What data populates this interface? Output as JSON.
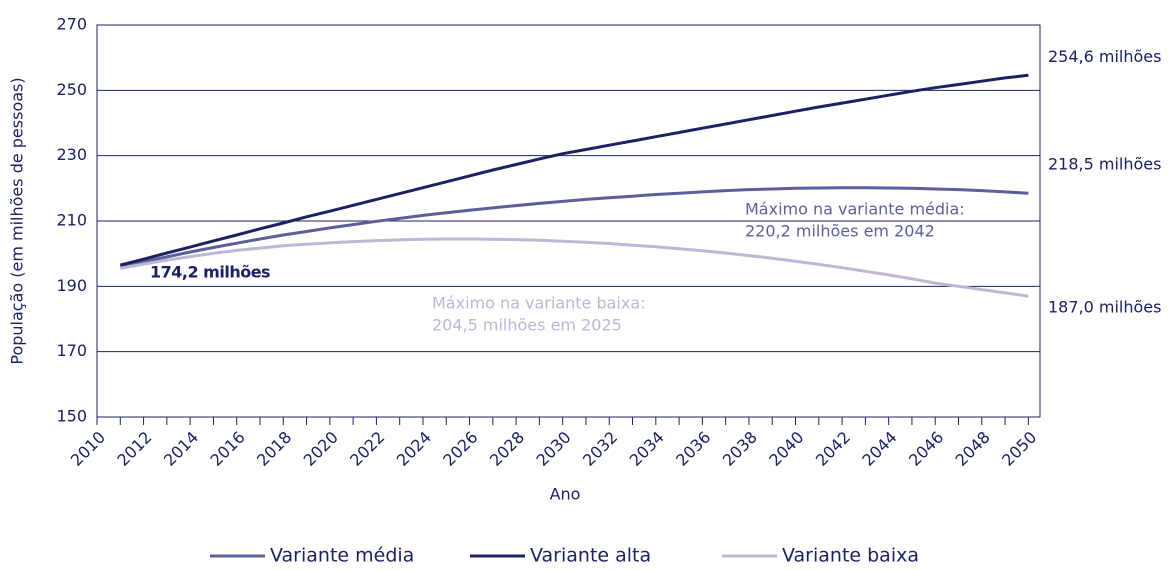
{
  "chart_data": {
    "type": "line",
    "xlabel": "Ano",
    "ylabel": "População (em milhões de pessoas)",
    "x": [
      2011,
      2012,
      2013,
      2014,
      2015,
      2016,
      2017,
      2018,
      2019,
      2020,
      2021,
      2022,
      2023,
      2024,
      2025,
      2026,
      2027,
      2028,
      2029,
      2030,
      2031,
      2032,
      2033,
      2034,
      2035,
      2036,
      2037,
      2038,
      2039,
      2040,
      2041,
      2042,
      2043,
      2044,
      2045,
      2046,
      2047,
      2048,
      2049,
      2050
    ],
    "series": [
      {
        "name": "Variante média",
        "color": "#5e5f9a",
        "values": [
          196.0,
          197.5,
          199.0,
          200.5,
          201.9,
          203.2,
          204.5,
          205.7,
          206.8,
          207.9,
          208.9,
          209.9,
          210.8,
          211.7,
          212.5,
          213.3,
          214.0,
          214.7,
          215.4,
          216.0,
          216.6,
          217.1,
          217.6,
          218.1,
          218.5,
          218.9,
          219.3,
          219.6,
          219.8,
          220.0,
          220.1,
          220.2,
          220.2,
          220.1,
          220.0,
          219.8,
          219.6,
          219.3,
          218.9,
          218.5
        ],
        "end_label": "218,5 milhões"
      },
      {
        "name": "Variante alta",
        "color": "#1b2262",
        "values": [
          196.5,
          198.3,
          200.2,
          202.0,
          203.9,
          205.7,
          207.6,
          209.4,
          211.3,
          213.0,
          214.8,
          216.6,
          218.4,
          220.2,
          222.0,
          223.8,
          225.6,
          227.3,
          229.0,
          230.6,
          231.9,
          233.2,
          234.5,
          235.8,
          237.1,
          238.4,
          239.7,
          241.0,
          242.3,
          243.6,
          244.9,
          246.1,
          247.3,
          248.5,
          249.7,
          250.8,
          251.8,
          252.8,
          253.8,
          254.6
        ],
        "end_label": "254,6 milhões"
      },
      {
        "name": "Variante baixa",
        "color": "#b9b9d6",
        "values": [
          195.5,
          196.8,
          198.0,
          199.1,
          200.1,
          201.0,
          201.7,
          202.4,
          202.9,
          203.3,
          203.7,
          204.0,
          204.2,
          204.4,
          204.5,
          204.5,
          204.4,
          204.3,
          204.1,
          203.8,
          203.5,
          203.1,
          202.6,
          202.1,
          201.5,
          200.9,
          200.2,
          199.4,
          198.6,
          197.7,
          196.7,
          195.7,
          194.6,
          193.5,
          192.3,
          191.0,
          190.0,
          189.0,
          188.0,
          187.0
        ],
        "end_label": "187,0 milhões"
      }
    ],
    "annotations": [
      {
        "text": [
          "174,2 milhões"
        ],
        "color": "#1b2262",
        "bold": true
      },
      {
        "text": [
          "Máximo na variante média:",
          "220,2 milhões em 2042"
        ],
        "color": "#5e5f9a"
      },
      {
        "text": [
          "Máximo na variante baixa:",
          "204,5 milhões em 2025"
        ],
        "color": "#b9b9d6"
      }
    ],
    "xlim": [
      2010,
      2050.5
    ],
    "xticks": [
      2010,
      2012,
      2014,
      2016,
      2018,
      2020,
      2022,
      2024,
      2026,
      2028,
      2030,
      2032,
      2034,
      2036,
      2038,
      2040,
      2042,
      2044,
      2046,
      2048,
      2050
    ],
    "ylim": [
      150,
      270
    ],
    "yticks": [
      150,
      170,
      190,
      210,
      230,
      250,
      270
    ],
    "grid": true,
    "legend": "bottom"
  }
}
